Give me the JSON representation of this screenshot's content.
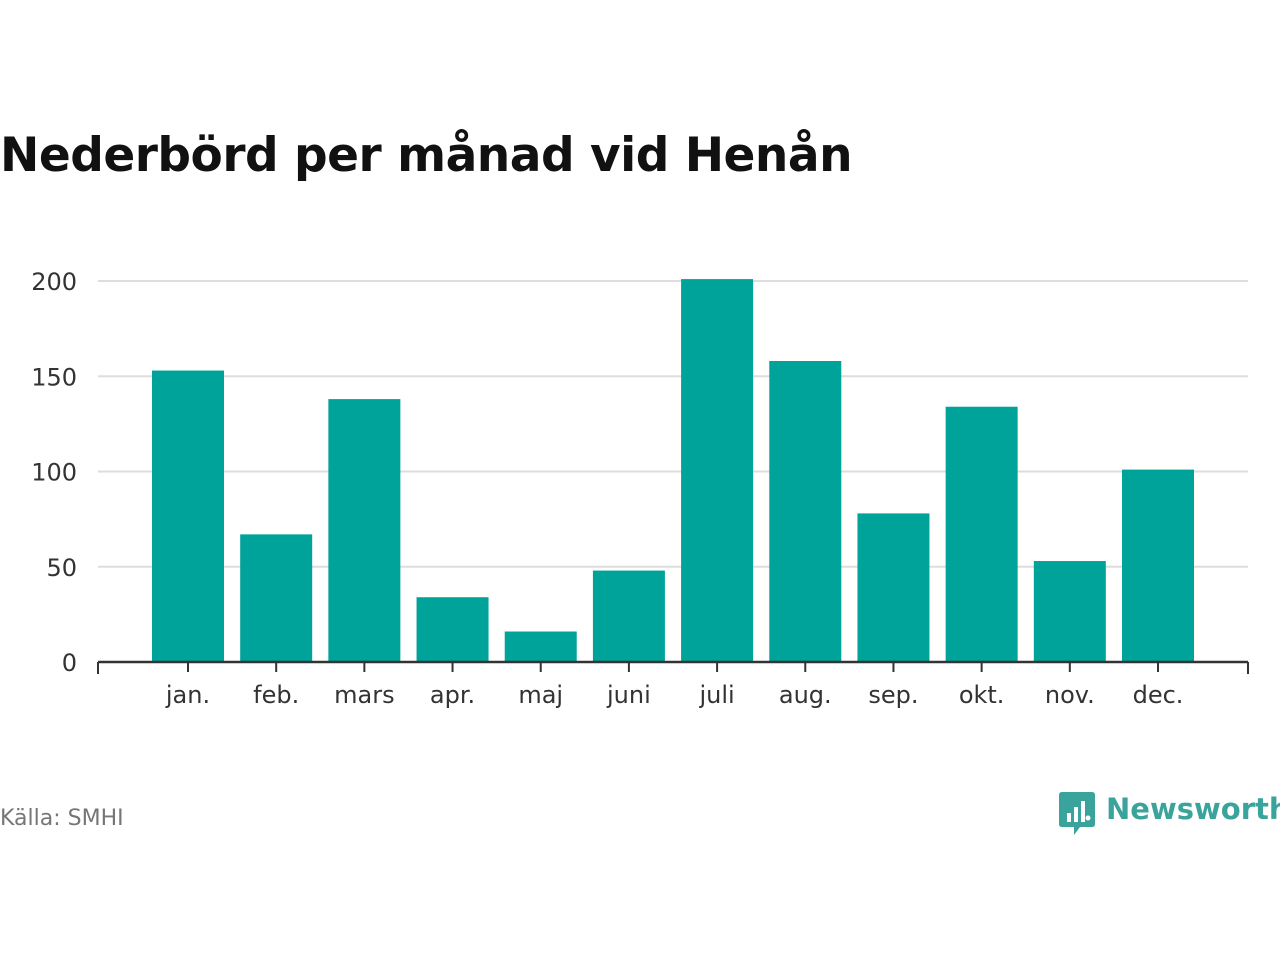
{
  "title": "Nederbörd per månad vid Henån",
  "source": "Källa: SMHI",
  "brand": {
    "name": "Newsworthy",
    "color": "#3aa39b",
    "icon": "newsworthy-logo-icon"
  },
  "colors": {
    "bar": "#00a39a",
    "grid": "#dddddd",
    "axis": "#333333"
  },
  "chart_data": {
    "type": "bar",
    "title": "Nederbörd per månad vid Henån",
    "categories": [
      "jan.",
      "feb.",
      "mars",
      "apr.",
      "maj",
      "juni",
      "juli",
      "aug.",
      "sep.",
      "okt.",
      "nov.",
      "dec."
    ],
    "values": [
      153,
      67,
      138,
      34,
      16,
      48,
      201,
      158,
      78,
      134,
      53,
      101
    ],
    "yticks": [
      0,
      50,
      100,
      150,
      200
    ],
    "ylim": [
      0,
      200
    ],
    "xlabel": "",
    "ylabel": "",
    "grid": true,
    "legend": "none"
  }
}
